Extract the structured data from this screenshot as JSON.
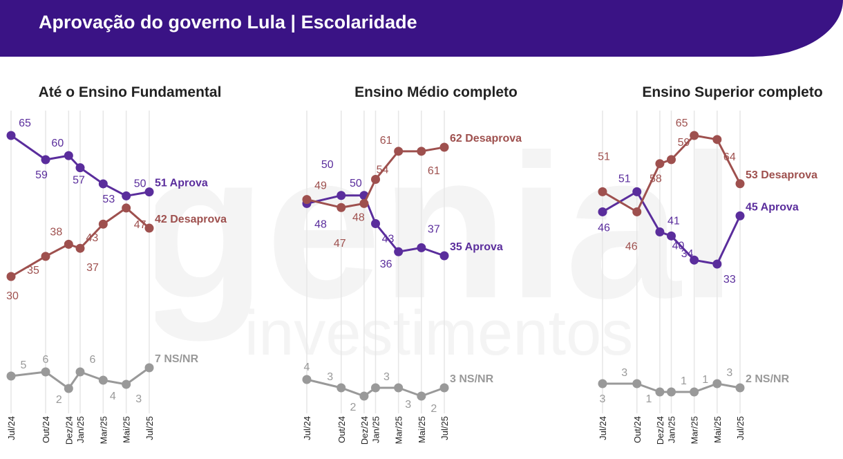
{
  "header": {
    "title": "Aprovação do governo Lula | Escolaridade"
  },
  "colors": {
    "header_bg": "#3a1385",
    "aprova": "#5a2d9c",
    "desaprova": "#9e504e",
    "nsnr": "#999999",
    "grid": "#e6e6e6"
  },
  "chart_data": [
    {
      "type": "line",
      "title": "Até o Ensino Fundamental",
      "x": [
        "Jul/24",
        "Out/24",
        "Dez/24",
        "Jan/25",
        "Mar/25",
        "Mai/25",
        "Jul/25"
      ],
      "series": [
        {
          "key": "aprova",
          "values": [
            65,
            59,
            60,
            57,
            53,
            50,
            51
          ],
          "end_label": "51 Aprova"
        },
        {
          "key": "desaprova",
          "values": [
            30,
            35,
            38,
            37,
            43,
            47,
            42
          ],
          "end_label": "42 Desaprova"
        },
        {
          "key": "nsnr",
          "values": [
            5,
            6,
            2,
            6,
            4,
            3,
            7
          ],
          "end_label": "7 NS/NR"
        }
      ]
    },
    {
      "type": "line",
      "title": "Ensino Médio completo",
      "x": [
        "Jul/24",
        "Out/24",
        "Dez/24",
        "Jan/25",
        "Mar/25",
        "Mai/25",
        "Jul/25"
      ],
      "series": [
        {
          "key": "aprova",
          "values": [
            48,
            50,
            50,
            43,
            36,
            37,
            35
          ],
          "end_label": "35 Aprova"
        },
        {
          "key": "desaprova",
          "values": [
            49,
            47,
            48,
            54,
            61,
            61,
            62
          ],
          "end_label": "62 Desaprova"
        },
        {
          "key": "nsnr",
          "values": [
            4,
            3,
            2,
            3,
            3,
            2,
            3
          ],
          "end_label": "3 NS/NR"
        }
      ]
    },
    {
      "type": "line",
      "title": "Ensino Superior completo",
      "x": [
        "Jul/24",
        "Out/24",
        "Dez/24",
        "Jan/25",
        "Mar/25",
        "Mai/25",
        "Jul/25"
      ],
      "series": [
        {
          "key": "aprova",
          "values": [
            46,
            51,
            41,
            40,
            34,
            33,
            45
          ],
          "end_label": "45 Aprova"
        },
        {
          "key": "desaprova",
          "values": [
            51,
            46,
            58,
            59,
            65,
            64,
            53
          ],
          "end_label": "53 Desaprova"
        },
        {
          "key": "nsnr",
          "values": [
            3,
            3,
            1,
            1,
            1,
            3,
            2
          ],
          "end_label": "2 NS/NR"
        }
      ]
    }
  ],
  "watermark": {
    "text_top": "genial",
    "text_bottom": "investimentos"
  }
}
